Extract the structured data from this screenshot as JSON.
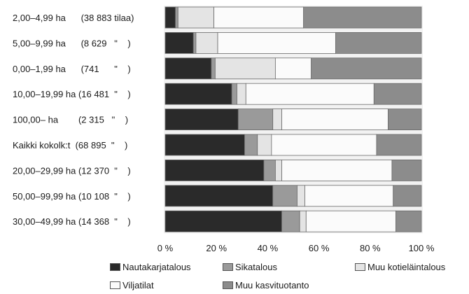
{
  "chart_data": {
    "type": "bar",
    "orientation": "horizontal",
    "stacked": true,
    "xlim": [
      0,
      100
    ],
    "x_ticks": [
      "0 %",
      "20 %",
      "40 %",
      "60 %",
      "80 %",
      "100 %"
    ],
    "categories": [
      "2,00–4,99 ha      (38 883 tilaa)",
      "5,00–9,99 ha      (8 629   \"    )",
      "0,00–1,99 ha      (741      \"    )",
      "10,00–19,99 ha (16 481  \"    )",
      "100,00– ha        (2 315   \"    )",
      "Kaikki kokolk:t  (68 895  \"    )",
      "20,00–29,99 ha (12 370  \"    )",
      "50,00–99,99 ha (10 108  \"    )",
      "30,00–49,99 ha (14 368  \"    )"
    ],
    "series": [
      {
        "name": "Nautakarjatalous",
        "color": "#2a2a2a",
        "values": [
          4,
          11,
          18,
          26,
          28.5,
          31,
          38.5,
          42,
          45.5
        ]
      },
      {
        "name": "Sikatalous",
        "color": "#9a9a9a",
        "values": [
          1,
          1,
          1.5,
          2,
          13.5,
          5,
          4.5,
          9.5,
          7
        ]
      },
      {
        "name": "Muu kotieläintalous",
        "color": "#e4e4e4",
        "values": [
          14,
          8.5,
          23.5,
          3.5,
          3.5,
          5.5,
          2.5,
          3,
          2.5
        ]
      },
      {
        "name": "Viljatilat",
        "color": "#fbfbfb",
        "values": [
          35,
          46,
          14,
          50,
          41.5,
          41,
          43,
          34.5,
          35
        ]
      },
      {
        "name": "Muu kasvituotanto",
        "color": "#8c8c8c",
        "values": [
          46,
          33.5,
          43,
          18.5,
          13,
          17.5,
          11.5,
          11,
          10
        ]
      }
    ],
    "legend_position": "bottom",
    "legend": {
      "row1": [
        "Nautakarjatalous",
        "Sikatalous",
        "Muu kotieläintalous"
      ],
      "row2": [
        "Viljatilat",
        "Muu kasvituotanto"
      ]
    },
    "grid": false
  }
}
